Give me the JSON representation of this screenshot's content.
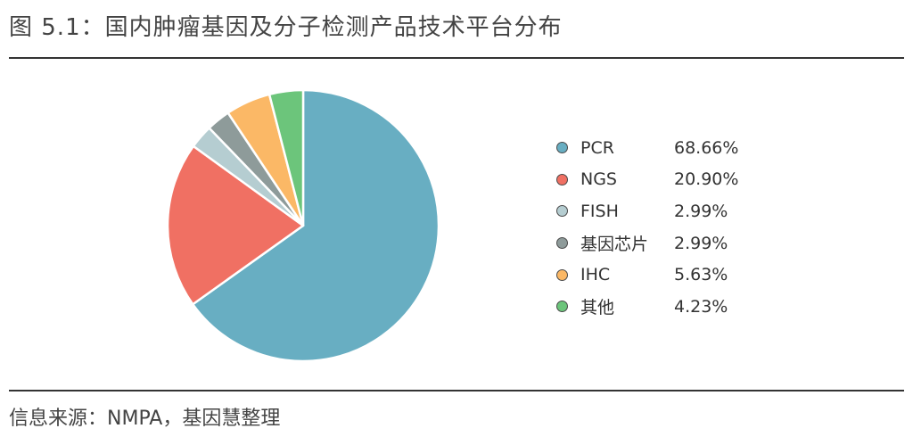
{
  "figure": {
    "title": "图 5.1：国内肿瘤基因及分子检测产品技术平台分布",
    "source": "信息来源：NMPA，基因慧整理"
  },
  "chart_data": {
    "type": "pie",
    "title": "图 5.1：国内肿瘤基因及分子检测产品技术平台分布",
    "legend_position": "right",
    "slices": [
      {
        "label": "PCR",
        "value": 68.66,
        "display": "68.66%",
        "color": "#68aec2"
      },
      {
        "label": "NGS",
        "value": 20.9,
        "display": "20.90%",
        "color": "#f07063"
      },
      {
        "label": "FISH",
        "value": 2.99,
        "display": "2.99%",
        "color": "#b5cdd1"
      },
      {
        "label": "基因芯片",
        "value": 2.99,
        "display": "2.99%",
        "color": "#8e9b9a"
      },
      {
        "label": "IHC",
        "value": 5.63,
        "display": "5.63%",
        "color": "#fbb866"
      },
      {
        "label": "其他",
        "value": 4.23,
        "display": "4.23%",
        "color": "#6cc57b"
      }
    ]
  }
}
